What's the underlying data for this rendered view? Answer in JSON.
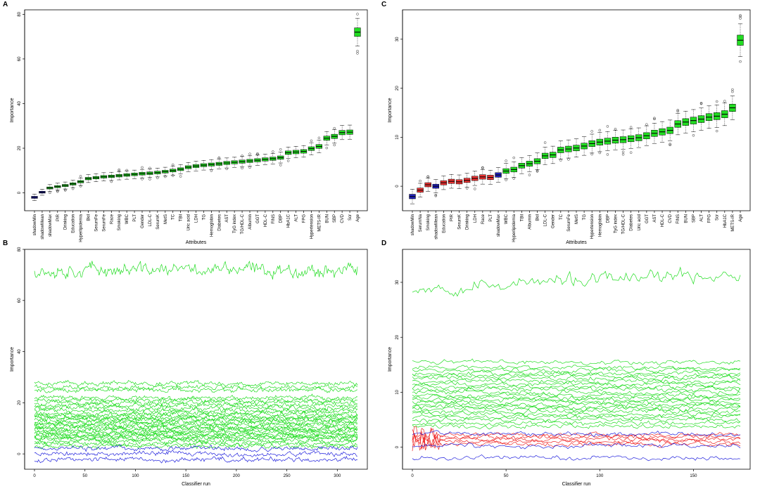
{
  "colors": {
    "confirmed": "#22dd22",
    "tentative": "#ee3333",
    "shadow": "#2222bb",
    "line_green": "#22dd22",
    "line_red": "#ee2222",
    "line_blue": "#2222dd"
  },
  "chart_data": [
    {
      "panel": "A",
      "type": "box",
      "xlabel": "Attributes",
      "ylabel": "Importance",
      "ylim": [
        -8,
        82
      ],
      "yticks": [
        0,
        20,
        40,
        60,
        80
      ],
      "attributes": [
        {
          "name": "shadowMin",
          "median": -2,
          "color": "shadow"
        },
        {
          "name": "shadowMean",
          "median": 0.3,
          "color": "shadow"
        },
        {
          "name": "shadowMax",
          "median": 2.2,
          "color": "confirmed"
        },
        {
          "name": "PIR",
          "median": 2.8,
          "color": "confirmed"
        },
        {
          "name": "Drinking",
          "median": 3.3,
          "color": "confirmed"
        },
        {
          "name": "Education",
          "median": 4,
          "color": "confirmed"
        },
        {
          "name": "Hyperlipidemia",
          "median": 5,
          "color": "confirmed"
        },
        {
          "name": "Bkil",
          "median": 6.4,
          "color": "confirmed"
        },
        {
          "name": "SerumFe",
          "median": 6.8,
          "color": "confirmed"
        },
        {
          "name": "SerumFe",
          "median": 7.2,
          "color": "confirmed"
        },
        {
          "name": "Race",
          "median": 7.4,
          "color": "confirmed"
        },
        {
          "name": "Smoking",
          "median": 7.7,
          "color": "confirmed"
        },
        {
          "name": "WBC",
          "median": 8,
          "color": "confirmed"
        },
        {
          "name": "PLT",
          "median": 8.3,
          "color": "confirmed"
        },
        {
          "name": "Gender",
          "median": 8.6,
          "color": "confirmed"
        },
        {
          "name": "LDL-C",
          "median": 8.8,
          "color": "confirmed"
        },
        {
          "name": "SerumK",
          "median": 9.1,
          "color": "confirmed"
        },
        {
          "name": "MetS",
          "median": 9.5,
          "color": "confirmed"
        },
        {
          "name": "TC",
          "median": 10,
          "color": "confirmed"
        },
        {
          "name": "TBil",
          "median": 10.6,
          "color": "confirmed"
        },
        {
          "name": "Uric acid",
          "median": 11.5,
          "color": "confirmed"
        },
        {
          "name": "LDH",
          "median": 12,
          "color": "confirmed"
        },
        {
          "name": "TG",
          "median": 12.4,
          "color": "confirmed"
        },
        {
          "name": "Hemoglobin",
          "median": 12.7,
          "color": "confirmed"
        },
        {
          "name": "Diabetes",
          "median": 13,
          "color": "confirmed"
        },
        {
          "name": "AST",
          "median": 13.4,
          "color": "confirmed"
        },
        {
          "name": "TyG index",
          "median": 13.7,
          "color": "confirmed"
        },
        {
          "name": "TG/HDL-C",
          "median": 14,
          "color": "confirmed"
        },
        {
          "name": "Albumin",
          "median": 14.3,
          "color": "confirmed"
        },
        {
          "name": "GGT",
          "median": 14.6,
          "color": "confirmed"
        },
        {
          "name": "HDL-C",
          "median": 15,
          "color": "confirmed"
        },
        {
          "name": "FINS",
          "median": 15.3,
          "color": "confirmed"
        },
        {
          "name": "DBP",
          "median": 15.8,
          "color": "confirmed"
        },
        {
          "name": "HbA1C",
          "median": 18,
          "color": "confirmed"
        },
        {
          "name": "ALT",
          "median": 18.3,
          "color": "confirmed"
        },
        {
          "name": "FPG",
          "median": 18.6,
          "color": "confirmed"
        },
        {
          "name": "Hypertension",
          "median": 19.8,
          "color": "confirmed"
        },
        {
          "name": "METS-IR",
          "median": 20.8,
          "color": "confirmed"
        },
        {
          "name": "BUN",
          "median": 24.5,
          "color": "confirmed"
        },
        {
          "name": "SBP",
          "median": 25.3,
          "color": "confirmed"
        },
        {
          "name": "CVD",
          "median": 27,
          "color": "confirmed"
        },
        {
          "name": "Scr",
          "median": 27.2,
          "color": "confirmed"
        },
        {
          "name": "Age",
          "median": 72,
          "color": "confirmed"
        }
      ]
    },
    {
      "panel": "C",
      "type": "box",
      "xlabel": "Attributes",
      "ylabel": "Importance",
      "ylim": [
        -5,
        36
      ],
      "yticks": [
        0,
        10,
        20,
        30
      ],
      "attributes": [
        {
          "name": "shadowMin",
          "median": -2.1,
          "color": "shadow"
        },
        {
          "name": "SerumNa",
          "median": -0.8,
          "color": "tentative"
        },
        {
          "name": "Smoking",
          "median": 0.3,
          "color": "tentative"
        },
        {
          "name": "shadowMean",
          "median": 0,
          "color": "shadow"
        },
        {
          "name": "Education",
          "median": 0.7,
          "color": "tentative"
        },
        {
          "name": "PIR",
          "median": 1,
          "color": "tentative"
        },
        {
          "name": "SerumK",
          "median": 0.9,
          "color": "tentative"
        },
        {
          "name": "Drinking",
          "median": 1.2,
          "color": "tentative"
        },
        {
          "name": "LDH",
          "median": 1.6,
          "color": "tentative"
        },
        {
          "name": "Race",
          "median": 1.9,
          "color": "tentative"
        },
        {
          "name": "PLT",
          "median": 1.8,
          "color": "tentative"
        },
        {
          "name": "shadowMax",
          "median": 2.3,
          "color": "shadow"
        },
        {
          "name": "WBC",
          "median": 3.1,
          "color": "confirmed"
        },
        {
          "name": "Hyperlipidemia",
          "median": 3.4,
          "color": "confirmed"
        },
        {
          "name": "TBil",
          "median": 4.2,
          "color": "confirmed"
        },
        {
          "name": "Albumin",
          "median": 4.6,
          "color": "confirmed"
        },
        {
          "name": "Bkil",
          "median": 5.1,
          "color": "confirmed"
        },
        {
          "name": "LDL-C",
          "median": 6.2,
          "color": "confirmed"
        },
        {
          "name": "Gender",
          "median": 6.4,
          "color": "confirmed"
        },
        {
          "name": "TC",
          "median": 7.4,
          "color": "confirmed"
        },
        {
          "name": "SerumFe",
          "median": 7.6,
          "color": "confirmed"
        },
        {
          "name": "MetS",
          "median": 7.8,
          "color": "confirmed"
        },
        {
          "name": "TG",
          "median": 8.2,
          "color": "confirmed"
        },
        {
          "name": "Hypertension",
          "median": 8.7,
          "color": "confirmed"
        },
        {
          "name": "Hemoglobin",
          "median": 9,
          "color": "confirmed"
        },
        {
          "name": "DBP",
          "median": 9.2,
          "color": "confirmed"
        },
        {
          "name": "TyG index",
          "median": 9.4,
          "color": "confirmed"
        },
        {
          "name": "TG/HDL-C",
          "median": 9.5,
          "color": "confirmed"
        },
        {
          "name": "Diabetes",
          "median": 9.7,
          "color": "confirmed"
        },
        {
          "name": "Uric acid",
          "median": 9.9,
          "color": "confirmed"
        },
        {
          "name": "GGT",
          "median": 10.3,
          "color": "confirmed"
        },
        {
          "name": "AST",
          "median": 10.8,
          "color": "confirmed"
        },
        {
          "name": "HDL-C",
          "median": 11.1,
          "color": "confirmed"
        },
        {
          "name": "CVD",
          "median": 11.4,
          "color": "confirmed"
        },
        {
          "name": "FINS",
          "median": 12.7,
          "color": "confirmed"
        },
        {
          "name": "BUN",
          "median": 13.1,
          "color": "confirmed"
        },
        {
          "name": "SBP",
          "median": 13.4,
          "color": "confirmed"
        },
        {
          "name": "ALT",
          "median": 13.7,
          "color": "confirmed"
        },
        {
          "name": "FPG",
          "median": 14.1,
          "color": "confirmed"
        },
        {
          "name": "Scr",
          "median": 14.3,
          "color": "confirmed"
        },
        {
          "name": "HbA1C",
          "median": 14.7,
          "color": "confirmed"
        },
        {
          "name": "METS-IR",
          "median": 16,
          "color": "confirmed"
        },
        {
          "name": "Age",
          "median": 29.8,
          "color": "confirmed"
        }
      ]
    },
    {
      "panel": "B",
      "type": "line",
      "xlabel": "Classifier run",
      "ylabel": "Importance",
      "xlim": [
        0,
        320
      ],
      "ylim": [
        -6,
        80
      ],
      "xticks": [
        0,
        50,
        100,
        150,
        200,
        250,
        300
      ],
      "yticks": [
        0,
        20,
        40,
        60,
        80
      ],
      "series_groups": [
        {
          "color": "line_green",
          "levels": [
            72,
            27.5,
            26,
            25,
            22,
            21,
            20,
            19,
            18,
            17,
            16,
            15.3,
            14.5,
            14,
            13.3,
            12.6,
            12,
            11.3,
            10.5,
            10,
            9.3,
            8.7,
            8,
            7.5,
            7,
            6.4,
            5.8,
            5,
            4,
            3
          ]
        },
        {
          "color": "line_blue",
          "levels": [
            2.2,
            0,
            -2.2
          ]
        }
      ]
    },
    {
      "panel": "D",
      "type": "line",
      "xlabel": "Classifier run",
      "ylabel": "Importance",
      "xlim": [
        0,
        175
      ],
      "ylim": [
        -4,
        36
      ],
      "xticks": [
        0,
        50,
        100,
        150
      ],
      "yticks": [
        0,
        10,
        20,
        30
      ],
      "series_groups": [
        {
          "color": "line_green",
          "levels": [
            29,
            15.5,
            14.5,
            14,
            13.4,
            13,
            12.6,
            12,
            11.5,
            11,
            10.5,
            10,
            9.5,
            9,
            8.6,
            8.2,
            7.8,
            7.4,
            7,
            6.5,
            6,
            5.5,
            5,
            4.4,
            3.8
          ]
        },
        {
          "color": "line_red",
          "levels": [
            2.2,
            1.8,
            1.4,
            1,
            0.6
          ]
        },
        {
          "color": "line_blue",
          "levels": [
            2.4,
            0.2,
            -2
          ]
        }
      ]
    }
  ]
}
